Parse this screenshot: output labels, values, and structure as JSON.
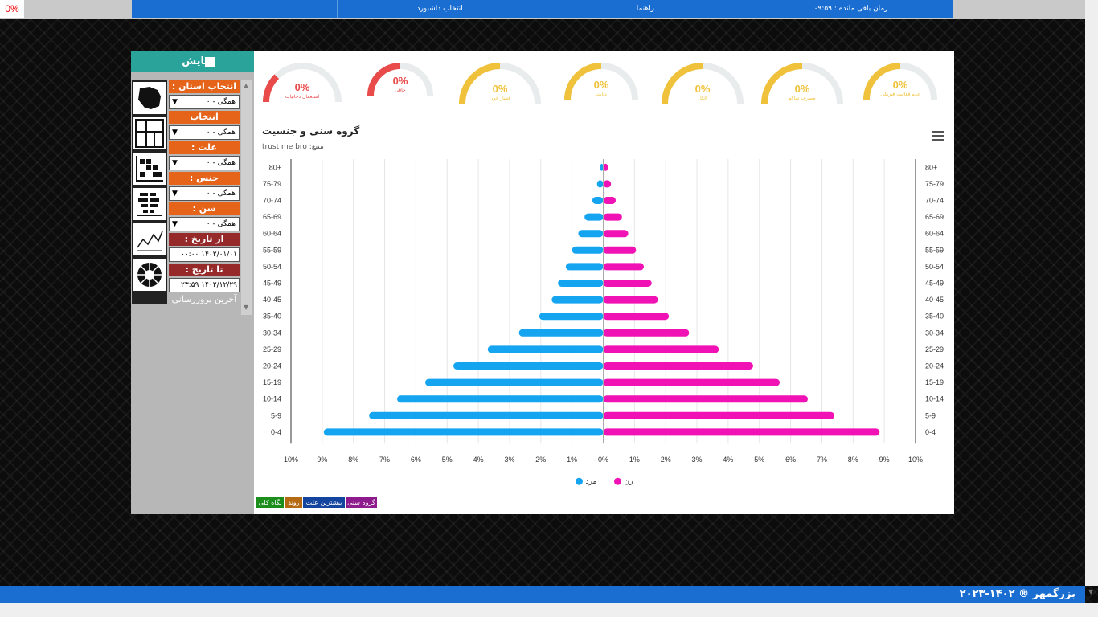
{
  "corner_badge": "0%",
  "topnav": {
    "items": [
      "",
      "انتخاب داشبورد",
      "راهنما",
      "زمان باقی مانده : ۰۹:۵۹"
    ]
  },
  "sidebar": {
    "title": "نمایش",
    "icons": [
      "iran-map-icon",
      "layout-icon",
      "heatmap-grid-icon",
      "bar-chart-icon",
      "line-chart-icon",
      "radial-chart-icon"
    ],
    "filters": [
      {
        "label": "انتخاب استان :",
        "value": "همگی - ۰"
      },
      {
        "label": "انتخاب شهرستان :",
        "value": "همگی - ۰"
      },
      {
        "label": "علت :",
        "value": "همگی - ۰"
      },
      {
        "label": "جنس :",
        "value": "همگی - ۰"
      },
      {
        "label": "سن :",
        "value": "همگی - ۰"
      }
    ],
    "from_date_label": "از تاریخ :",
    "from_date_value": "۱۴۰۲/۰۱/۰۱ ۰۰:۰۰",
    "to_date_label": "تا تاریخ :",
    "to_date_value": "۱۴۰۲/۱۲/۲۹ ۲۳:۵۹",
    "last_update": "آخرین بروزرسانی"
  },
  "gauges": [
    {
      "value": "0%",
      "fraction": 0.5,
      "label": "عدم فعالیت فیزیکی",
      "color": "#f0c23b"
    },
    {
      "value": "0%",
      "fraction": 0.5,
      "label": "مصرف تنباکو",
      "color": "#f0c23b"
    },
    {
      "value": "0%",
      "fraction": 0.5,
      "label": "الکل",
      "color": "#f0c23b"
    },
    {
      "value": "0%",
      "fraction": 0.5,
      "label": "دیابت",
      "color": "#f0c23b"
    },
    {
      "value": "0%",
      "fraction": 0.5,
      "label": "فشار خون",
      "color": "#f0c23b"
    },
    {
      "value": "0%",
      "fraction": 0.5,
      "label": "چاقی",
      "color": "#e94a4a"
    },
    {
      "value": "0%",
      "fraction": 0.25,
      "label": "استعمال دخانیات",
      "color": "#e94a4a"
    }
  ],
  "chart_data": {
    "type": "bar",
    "orientation": "horizontal",
    "layout": "population-pyramid",
    "title": "گروه سنی و جنسیت",
    "subtitle": "منبع: trust me bro",
    "categories": [
      "80+",
      "75-79",
      "70-74",
      "65-69",
      "60-64",
      "55-59",
      "50-54",
      "45-49",
      "40-45",
      "35-40",
      "30-34",
      "25-29",
      "20-24",
      "15-19",
      "10-14",
      "5-9",
      "0-4"
    ],
    "series": [
      {
        "name": "مرد",
        "color": "#14a4f0",
        "side": "left",
        "values": [
          0.1,
          0.2,
          0.35,
          0.6,
          0.8,
          1.0,
          1.2,
          1.45,
          1.65,
          2.05,
          2.7,
          3.7,
          4.8,
          5.7,
          6.6,
          7.5,
          8.95
        ]
      },
      {
        "name": "زن",
        "color": "#f012b4",
        "side": "right",
        "values": [
          0.15,
          0.25,
          0.4,
          0.6,
          0.8,
          1.05,
          1.3,
          1.55,
          1.75,
          2.1,
          2.75,
          3.7,
          4.8,
          5.65,
          6.55,
          7.4,
          8.85
        ]
      }
    ],
    "xlim": [
      -10,
      10
    ],
    "x_ticks": [
      "10%",
      "9%",
      "8%",
      "7%",
      "6%",
      "5%",
      "4%",
      "3%",
      "2%",
      "1%",
      "0%",
      "1%",
      "2%",
      "3%",
      "4%",
      "5%",
      "6%",
      "7%",
      "8%",
      "9%",
      "10%"
    ],
    "grid": true,
    "legend_position": "bottom-center"
  },
  "bottom_tabs": [
    {
      "label": "گروه سنی",
      "color": "#8e1b8e"
    },
    {
      "label": "بیشترین علت",
      "color": "#13449e"
    },
    {
      "label": "روند",
      "color": "#b56a12"
    },
    {
      "label": "نگاه کلی",
      "color": "#1b8e1b"
    }
  ],
  "footer": {
    "text": "بزرگمهر ® ۱۴۰۲-۲۰۲۳"
  }
}
